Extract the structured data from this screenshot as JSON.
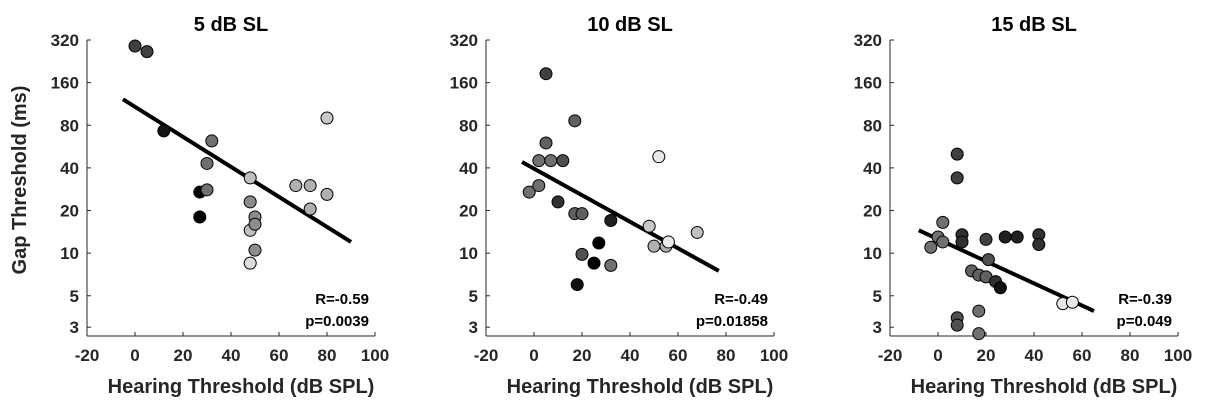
{
  "chart_data": [
    {
      "type": "scatter",
      "title": "5 dB SL",
      "xlabel": "Hearing Threshold (dB SPL)",
      "ylabel": "Gap Threshold (ms)",
      "xlim": [
        -20,
        100
      ],
      "ylim": [
        2.6,
        320
      ],
      "y_scale": "log",
      "x_ticks": [
        "-20",
        "0",
        "20",
        "40",
        "60",
        "80",
        "100"
      ],
      "y_ticks": [
        "3",
        "5",
        "10",
        "20",
        "40",
        "80",
        "160",
        "320"
      ],
      "grid": false,
      "annotation": {
        "r": "R=-0.59",
        "p": "p=0.0039"
      },
      "fit_line": {
        "x": [
          -5,
          90
        ],
        "y": [
          122,
          12
        ]
      },
      "points": [
        {
          "x": 0,
          "y": 290,
          "color": "#404040"
        },
        {
          "x": 5,
          "y": 265,
          "color": "#404040"
        },
        {
          "x": 12,
          "y": 73,
          "color": "#151515"
        },
        {
          "x": 27,
          "y": 27,
          "color": "#000000"
        },
        {
          "x": 27,
          "y": 18,
          "color": "#000000"
        },
        {
          "x": 30,
          "y": 43,
          "color": "#707070"
        },
        {
          "x": 30,
          "y": 28,
          "color": "#707070"
        },
        {
          "x": 32,
          "y": 62,
          "color": "#707070"
        },
        {
          "x": 48,
          "y": 34,
          "color": "#c0c0c0"
        },
        {
          "x": 48,
          "y": 23,
          "color": "#8c8c8c"
        },
        {
          "x": 48,
          "y": 14.5,
          "color": "#c0c0c0"
        },
        {
          "x": 48,
          "y": 8.5,
          "color": "#dcdcdc"
        },
        {
          "x": 50,
          "y": 18,
          "color": "#8c8c8c"
        },
        {
          "x": 50,
          "y": 16,
          "color": "#8c8c8c"
        },
        {
          "x": 50,
          "y": 10.5,
          "color": "#8c8c8c"
        },
        {
          "x": 67,
          "y": 30,
          "color": "#b0b0b0"
        },
        {
          "x": 73,
          "y": 30,
          "color": "#b0b0b0"
        },
        {
          "x": 73,
          "y": 20.5,
          "color": "#b0b0b0"
        },
        {
          "x": 80,
          "y": 26,
          "color": "#b0b0b0"
        },
        {
          "x": 80,
          "y": 90,
          "color": "#c8c8c8"
        }
      ]
    },
    {
      "type": "scatter",
      "title": "10 dB SL",
      "xlabel": "Hearing Threshold (dB SPL)",
      "ylabel": "",
      "xlim": [
        -20,
        100
      ],
      "ylim": [
        2.6,
        320
      ],
      "y_scale": "log",
      "x_ticks": [
        "-20",
        "0",
        "20",
        "40",
        "60",
        "80",
        "100"
      ],
      "y_ticks": [
        "3",
        "5",
        "10",
        "20",
        "40",
        "80",
        "160",
        "320"
      ],
      "grid": false,
      "annotation": {
        "r": "R=-0.49",
        "p": "p=0.01858"
      },
      "fit_line": {
        "x": [
          -5,
          77
        ],
        "y": [
          44,
          7.5
        ]
      },
      "points": [
        {
          "x": 5,
          "y": 185,
          "color": "#404040"
        },
        {
          "x": 5,
          "y": 60,
          "color": "#606060"
        },
        {
          "x": 17,
          "y": 86,
          "color": "#606060"
        },
        {
          "x": 2,
          "y": 45,
          "color": "#707070"
        },
        {
          "x": 7,
          "y": 45,
          "color": "#707070"
        },
        {
          "x": 12,
          "y": 45,
          "color": "#505050"
        },
        {
          "x": -2,
          "y": 27,
          "color": "#707070"
        },
        {
          "x": 2,
          "y": 30,
          "color": "#707070"
        },
        {
          "x": 10,
          "y": 23,
          "color": "#303030"
        },
        {
          "x": 17,
          "y": 19,
          "color": "#606060"
        },
        {
          "x": 20,
          "y": 19,
          "color": "#606060"
        },
        {
          "x": 32,
          "y": 17,
          "color": "#202020"
        },
        {
          "x": 20,
          "y": 9.8,
          "color": "#505050"
        },
        {
          "x": 27,
          "y": 11.8,
          "color": "#000000"
        },
        {
          "x": 25,
          "y": 8.5,
          "color": "#000000"
        },
        {
          "x": 32,
          "y": 8.2,
          "color": "#707070"
        },
        {
          "x": 18,
          "y": 6,
          "color": "#101010"
        },
        {
          "x": 48,
          "y": 15.5,
          "color": "#c8c8c8"
        },
        {
          "x": 50,
          "y": 11.2,
          "color": "#b0b0b0"
        },
        {
          "x": 55,
          "y": 11.2,
          "color": "#b0b0b0"
        },
        {
          "x": 56,
          "y": 12,
          "color": "#ebebeb"
        },
        {
          "x": 52,
          "y": 48,
          "color": "#e8e8e8"
        },
        {
          "x": 68,
          "y": 14,
          "color": "#c0c0c0"
        }
      ]
    },
    {
      "type": "scatter",
      "title": "15 dB SL",
      "xlabel": "Hearing Threshold (dB SPL)",
      "ylabel": "",
      "xlim": [
        -20,
        100
      ],
      "ylim": [
        2.6,
        320
      ],
      "y_scale": "log",
      "x_ticks": [
        "-20",
        "0",
        "20",
        "40",
        "60",
        "80",
        "100"
      ],
      "y_ticks": [
        "3",
        "5",
        "10",
        "20",
        "40",
        "80",
        "160",
        "320"
      ],
      "grid": false,
      "annotation": {
        "r": "R=-0.39",
        "p": "p=0.049"
      },
      "fit_line": {
        "x": [
          -8,
          65
        ],
        "y": [
          14.5,
          3.9
        ]
      },
      "points": [
        {
          "x": 8,
          "y": 50,
          "color": "#404040"
        },
        {
          "x": 8,
          "y": 34,
          "color": "#404040"
        },
        {
          "x": 2,
          "y": 16.5,
          "color": "#707070"
        },
        {
          "x": -3,
          "y": 11,
          "color": "#707070"
        },
        {
          "x": 0,
          "y": 13,
          "color": "#707070"
        },
        {
          "x": 2,
          "y": 12,
          "color": "#707070"
        },
        {
          "x": 10,
          "y": 13.5,
          "color": "#303030"
        },
        {
          "x": 10,
          "y": 12,
          "color": "#303030"
        },
        {
          "x": 20,
          "y": 12.5,
          "color": "#404040"
        },
        {
          "x": 28,
          "y": 13,
          "color": "#202020"
        },
        {
          "x": 33,
          "y": 13,
          "color": "#202020"
        },
        {
          "x": 42,
          "y": 13.5,
          "color": "#303030"
        },
        {
          "x": 42,
          "y": 11.5,
          "color": "#303030"
        },
        {
          "x": 21,
          "y": 9,
          "color": "#505050"
        },
        {
          "x": 14,
          "y": 7.5,
          "color": "#606060"
        },
        {
          "x": 17,
          "y": 7,
          "color": "#606060"
        },
        {
          "x": 20,
          "y": 6.8,
          "color": "#606060"
        },
        {
          "x": 24,
          "y": 6.3,
          "color": "#303030"
        },
        {
          "x": 26,
          "y": 5.7,
          "color": "#101010"
        },
        {
          "x": 17,
          "y": 3.9,
          "color": "#707070"
        },
        {
          "x": 8,
          "y": 3.5,
          "color": "#505050"
        },
        {
          "x": 8,
          "y": 3.1,
          "color": "#505050"
        },
        {
          "x": 17,
          "y": 2.7,
          "color": "#707070"
        },
        {
          "x": 52,
          "y": 4.4,
          "color": "#e8e8e8"
        },
        {
          "x": 56,
          "y": 4.5,
          "color": "#e8e8e8"
        }
      ]
    }
  ]
}
